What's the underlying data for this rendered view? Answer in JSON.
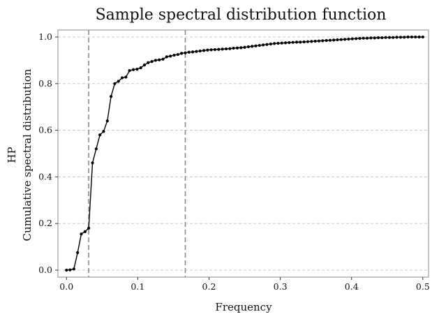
{
  "chart_data": {
    "type": "line",
    "title": "Sample spectral distribution function",
    "xlabel": "Frequency",
    "ylabel_top": "HP",
    "ylabel": "Cumulative spectral distribution",
    "xlim": [
      -0.012,
      0.508
    ],
    "ylim": [
      -0.03,
      1.03
    ],
    "xticks": [
      0.0,
      0.1,
      0.2,
      0.3,
      0.4,
      0.5
    ],
    "xtick_labels": [
      "0.0",
      "0.1",
      "0.2",
      "0.3",
      "0.4",
      "0.5"
    ],
    "yticks": [
      0.0,
      0.2,
      0.4,
      0.6,
      0.8,
      1.0
    ],
    "ytick_labels": [
      "0.0",
      "0.2",
      "0.4",
      "0.6",
      "0.8",
      "1.0"
    ],
    "grid": "horizontal dashed",
    "vertical_reference_lines": [
      0.0312,
      0.1667
    ],
    "series": [
      {
        "name": "HP",
        "x": [
          0.0,
          0.005,
          0.0104,
          0.0156,
          0.0208,
          0.026,
          0.0312,
          0.0365,
          0.0417,
          0.0469,
          0.0521,
          0.0573,
          0.0625,
          0.0677,
          0.0729,
          0.0781,
          0.0833,
          0.0885,
          0.0938,
          0.099,
          0.1042,
          0.1094,
          0.1146,
          0.1198,
          0.125,
          0.1302,
          0.1354,
          0.1406,
          0.1458,
          0.151,
          0.1563,
          0.1615,
          0.1667,
          0.1719,
          0.1771,
          0.1823,
          0.1875,
          0.1927,
          0.1979,
          0.2031,
          0.2083,
          0.2135,
          0.2188,
          0.224,
          0.2292,
          0.2344,
          0.2396,
          0.2448,
          0.25,
          0.2552,
          0.2604,
          0.2656,
          0.2708,
          0.276,
          0.2813,
          0.2865,
          0.2917,
          0.2969,
          0.3021,
          0.3073,
          0.3125,
          0.3177,
          0.3229,
          0.3281,
          0.3333,
          0.3385,
          0.3438,
          0.349,
          0.3542,
          0.3594,
          0.3646,
          0.3698,
          0.375,
          0.3802,
          0.3854,
          0.3906,
          0.3958,
          0.401,
          0.4063,
          0.4115,
          0.4167,
          0.4219,
          0.4271,
          0.4323,
          0.4375,
          0.4427,
          0.4479,
          0.4531,
          0.4583,
          0.4635,
          0.4688,
          0.474,
          0.4792,
          0.4844,
          0.4896,
          0.4948,
          0.5
        ],
        "y": [
          0.0,
          0.001,
          0.005,
          0.075,
          0.155,
          0.165,
          0.18,
          0.46,
          0.52,
          0.58,
          0.595,
          0.64,
          0.745,
          0.8,
          0.81,
          0.825,
          0.828,
          0.856,
          0.86,
          0.862,
          0.868,
          0.88,
          0.89,
          0.895,
          0.9,
          0.902,
          0.905,
          0.915,
          0.918,
          0.922,
          0.925,
          0.93,
          0.932,
          0.935,
          0.936,
          0.938,
          0.94,
          0.942,
          0.944,
          0.945,
          0.946,
          0.947,
          0.948,
          0.949,
          0.95,
          0.952,
          0.953,
          0.954,
          0.956,
          0.958,
          0.96,
          0.962,
          0.964,
          0.966,
          0.968,
          0.97,
          0.972,
          0.973,
          0.974,
          0.975,
          0.976,
          0.977,
          0.978,
          0.978,
          0.979,
          0.98,
          0.981,
          0.982,
          0.983,
          0.984,
          0.985,
          0.986,
          0.987,
          0.988,
          0.989,
          0.99,
          0.991,
          0.992,
          0.993,
          0.994,
          0.995,
          0.995,
          0.996,
          0.996,
          0.997,
          0.997,
          0.998,
          0.998,
          0.998,
          0.999,
          0.999,
          0.999,
          1.0,
          1.0,
          1.0,
          1.0,
          1.0
        ]
      }
    ]
  }
}
